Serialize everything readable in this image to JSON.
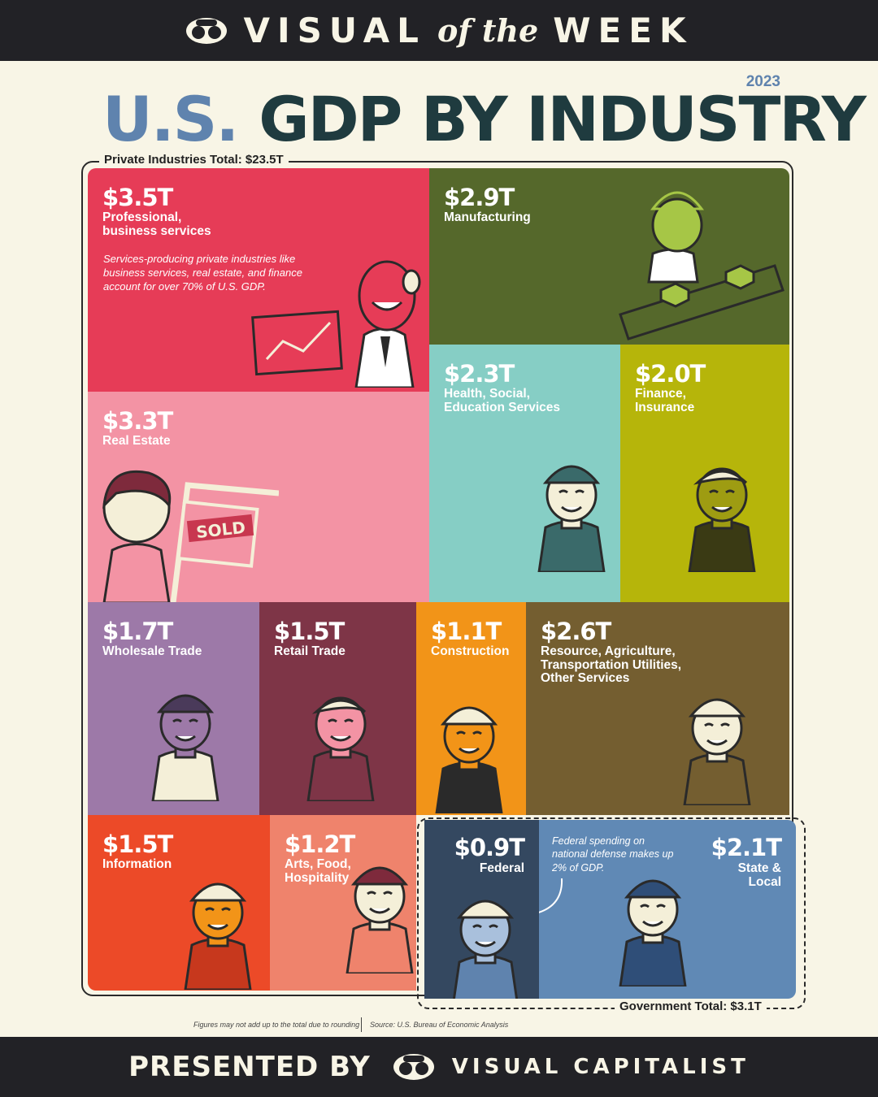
{
  "header": {
    "word1": "VISUAL",
    "word2": "of the",
    "word3": "WEEK"
  },
  "year": "2023",
  "title": {
    "part1": "U.S.",
    "part2": "GDP BY INDUSTRY"
  },
  "chart_data": {
    "type": "treemap",
    "title": "U.S. GDP BY INDUSTRY",
    "subtitle": "2023",
    "unit": "$T",
    "groups": [
      {
        "label": "Private Industries Total: $23.5T",
        "total": 23.5
      },
      {
        "label": "Government Total: $3.1T",
        "total": 3.1
      }
    ],
    "tiles": [
      {
        "key": "prof",
        "value": 3.5,
        "value_label": "$3.5T",
        "name": "Professional,\nbusiness services",
        "group": 0,
        "color": "#e63c57"
      },
      {
        "key": "manu",
        "value": 2.9,
        "value_label": "$2.9T",
        "name": "Manufacturing",
        "group": 0,
        "color": "#55682b"
      },
      {
        "key": "health",
        "value": 2.3,
        "value_label": "$2.3T",
        "name": "Health, Social,\nEducation Services",
        "group": 0,
        "color": "#86cec5"
      },
      {
        "key": "fin",
        "value": 2.0,
        "value_label": "$2.0T",
        "name": "Finance,\nInsurance",
        "group": 0,
        "color": "#b6b50a"
      },
      {
        "key": "real",
        "value": 3.3,
        "value_label": "$3.3T",
        "name": "Real Estate",
        "group": 0,
        "color": "#f393a4"
      },
      {
        "key": "whole",
        "value": 1.7,
        "value_label": "$1.7T",
        "name": "Wholesale Trade",
        "group": 0,
        "color": "#9d79a8"
      },
      {
        "key": "retail",
        "value": 1.5,
        "value_label": "$1.5T",
        "name": "Retail Trade",
        "group": 0,
        "color": "#7e3547"
      },
      {
        "key": "const",
        "value": 1.1,
        "value_label": "$1.1T",
        "name": "Construction",
        "group": 0,
        "color": "#f29418"
      },
      {
        "key": "resource",
        "value": 2.6,
        "value_label": "$2.6T",
        "name": "Resource, Agriculture,\nTransportation Utilities,\nOther Services",
        "group": 0,
        "color": "#745e30"
      },
      {
        "key": "info",
        "value": 1.5,
        "value_label": "$1.5T",
        "name": "Information",
        "group": 0,
        "color": "#ec4a28"
      },
      {
        "key": "arts",
        "value": 1.2,
        "value_label": "$1.2T",
        "name": "Arts, Food,\nHospitality",
        "group": 0,
        "color": "#ef836c"
      },
      {
        "key": "federal",
        "value": 0.9,
        "value_label": "$0.9T",
        "name": "Federal",
        "group": 1,
        "color": "#344860"
      },
      {
        "key": "state",
        "value": 2.1,
        "value_label": "$2.1T",
        "name": "State &\nLocal",
        "group": 1,
        "color": "#6089b5"
      }
    ],
    "annotations": [
      "Services-producing private industries like business services, real estate, and finance account for over 70% of U.S. GDP.",
      "Federal spending on national defense makes up 2% of GDP."
    ]
  },
  "footer": {
    "note": "Figures may not add up to the total due to rounding",
    "source": "Source: U.S. Bureau of Economic Analysis"
  },
  "bottom": {
    "presented": "PRESENTED BY",
    "brand": "VISUAL CAPITALIST"
  }
}
